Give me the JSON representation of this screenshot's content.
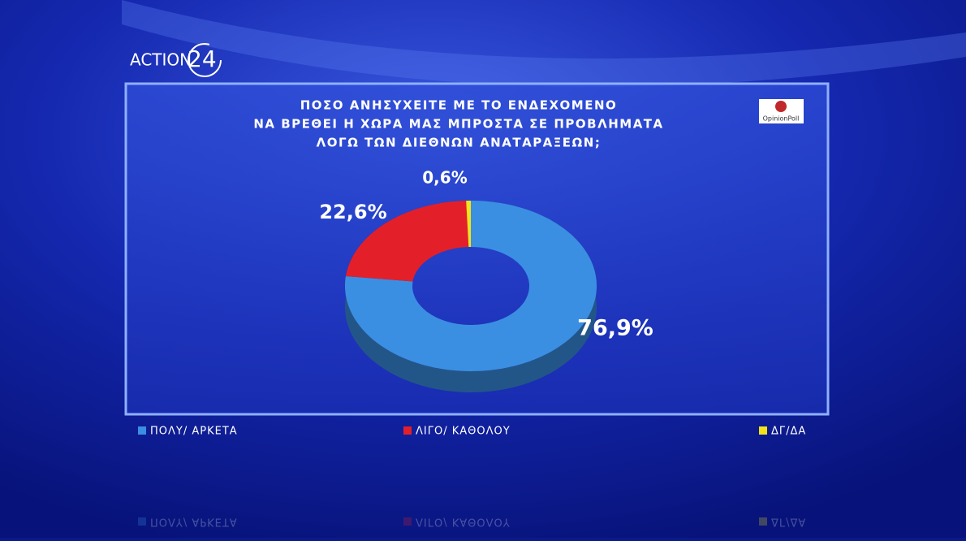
{
  "channel_logo": {
    "name": "ACTION",
    "number": "24"
  },
  "pollster": "OpinionPoll",
  "chart_data": {
    "type": "pie",
    "donut": true,
    "title": [
      "ΠΟΣΟ ΑΝΗΣΥΧΕΙΤΕ ΜΕ ΤΟ ΕΝΔΕΧΟΜΕΝΟ",
      "ΝΑ ΒΡΕΘΕΙ Η ΧΩΡΑ ΜΑΣ ΜΠΡΟΣΤΑ ΣΕ ΠΡΟΒΛΗΜΑΤΑ",
      "ΛΟΓΩ ΤΩΝ ΔΙΕΘΝΩΝ ΑΝΑΤΑΡΑΞΕΩΝ;"
    ],
    "categories": [
      "ΠΟΛΥ/ ΑΡΚΕΤΑ",
      "ΛΙΓΟ/ ΚΑΘΟΛΟΥ",
      "ΔΓ/ΔΑ"
    ],
    "values": [
      76.9,
      22.6,
      0.6
    ],
    "value_labels": [
      "76,9%",
      "22,6%",
      "0,6%"
    ],
    "colors": [
      "#3b8fe2",
      "#e3202a",
      "#f2e31b"
    ],
    "legend": "bottom"
  }
}
